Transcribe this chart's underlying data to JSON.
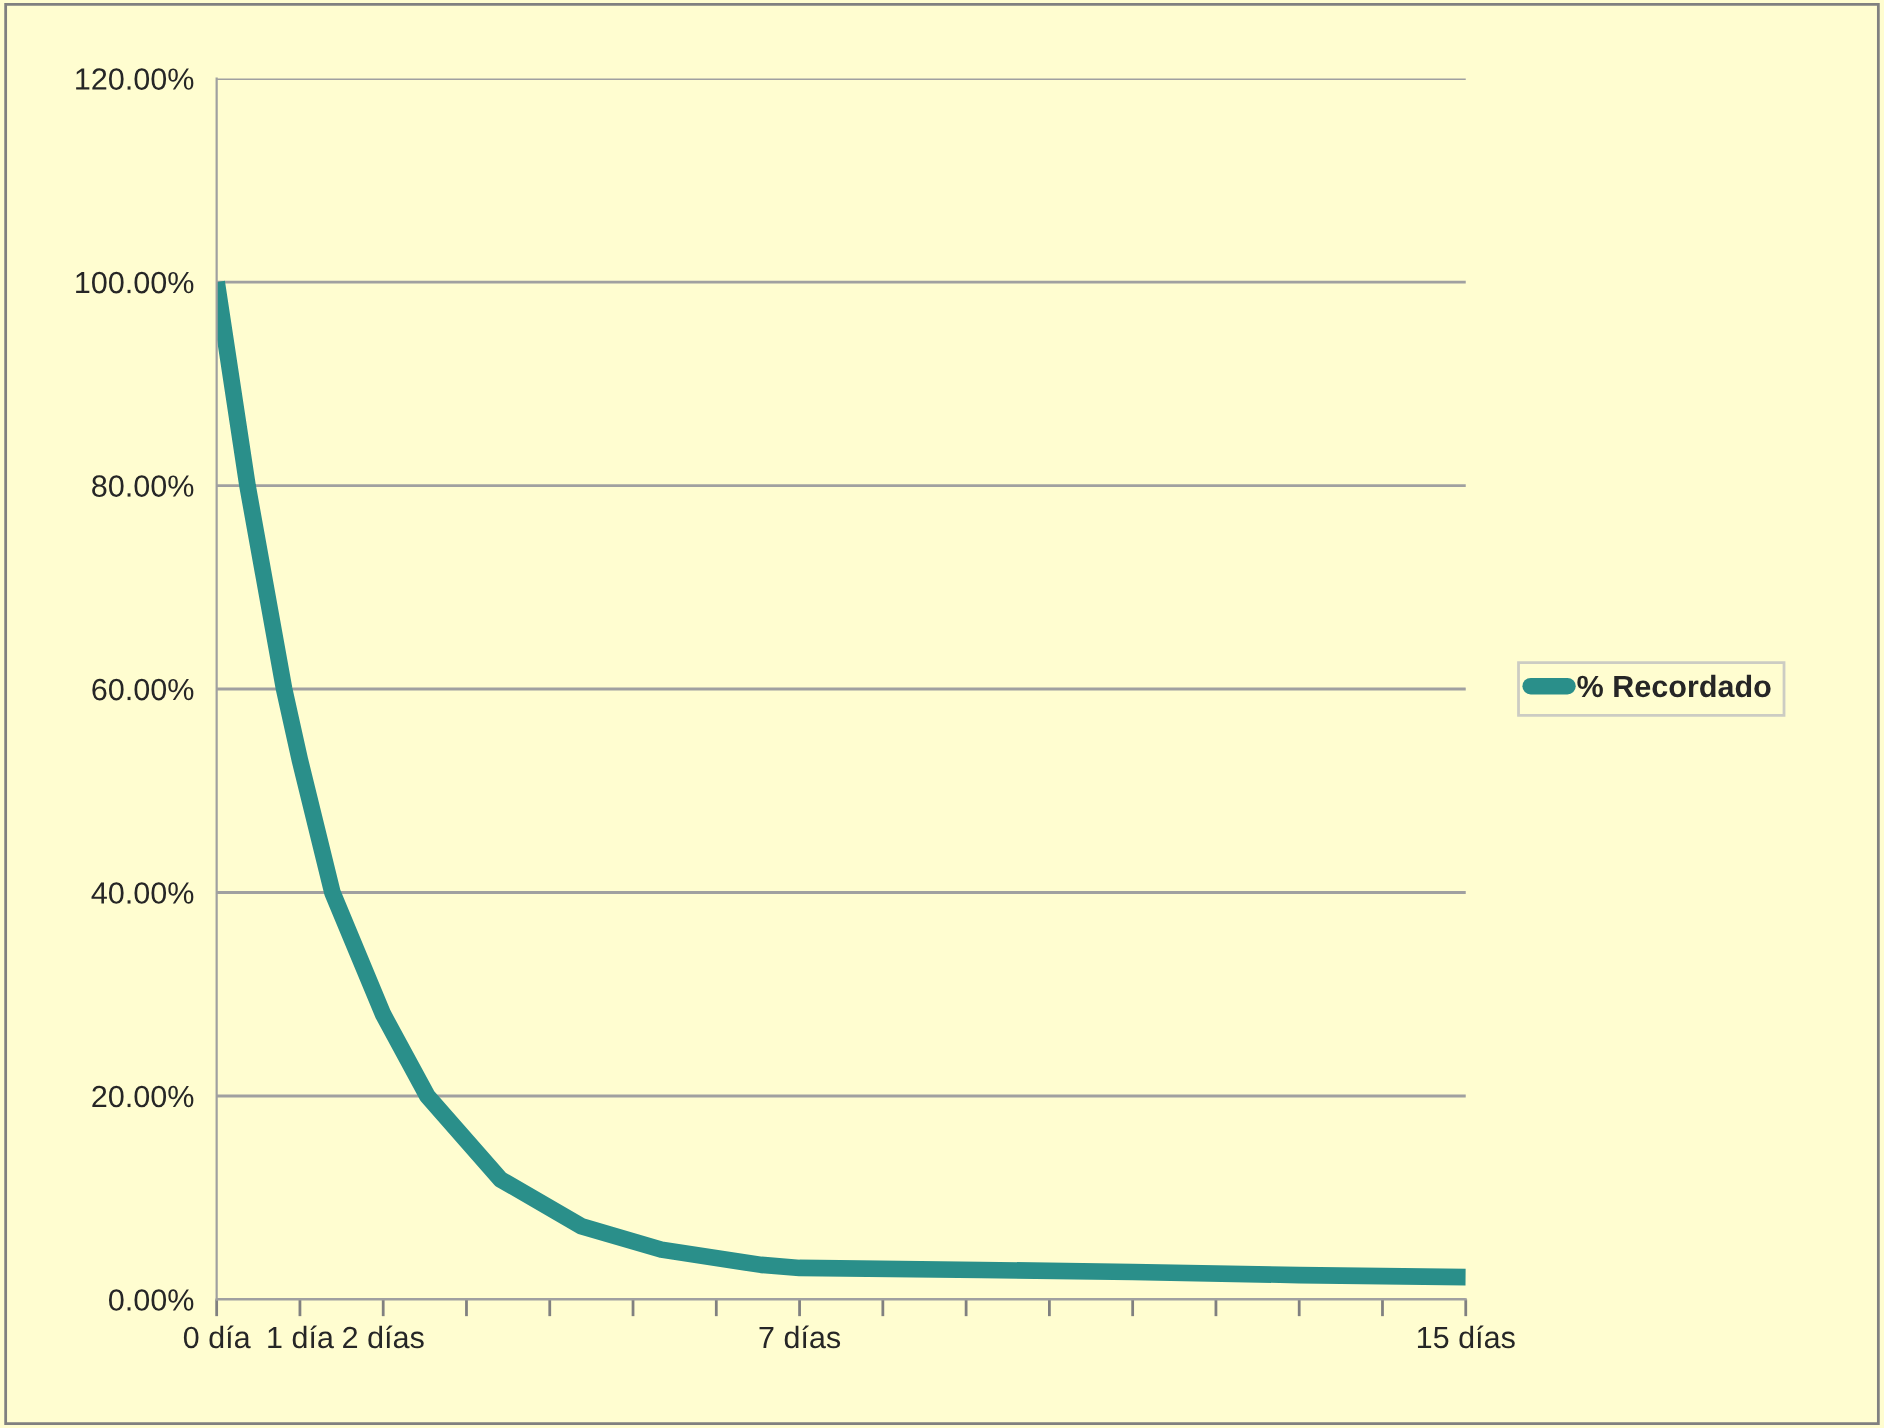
{
  "chart_data": {
    "type": "line",
    "x": [
      0,
      0.37,
      0.81,
      1.0,
      1.39,
      2.0,
      2.53,
      3.41,
      4.38,
      5.34,
      6.54,
      7,
      9.18,
      11,
      13,
      15
    ],
    "series": [
      {
        "name": "% Recordado",
        "color": "#2a8f8a",
        "values": [
          100,
          80,
          60,
          53,
          40,
          28,
          20,
          11.8,
          7.2,
          4.9,
          3.4,
          3.1,
          2.9,
          2.7,
          2.4,
          2.2
        ]
      }
    ],
    "xlim": [
      0,
      15
    ],
    "xticks": [
      {
        "value": 0,
        "label": "0 día"
      },
      {
        "value": 1,
        "label": "1 día"
      },
      {
        "value": 2,
        "label": "2 días"
      },
      {
        "value": 3,
        "label": null
      },
      {
        "value": 4,
        "label": null
      },
      {
        "value": 5,
        "label": null
      },
      {
        "value": 6,
        "label": null
      },
      {
        "value": 7,
        "label": "7 días"
      },
      {
        "value": 8,
        "label": null
      },
      {
        "value": 9,
        "label": null
      },
      {
        "value": 10,
        "label": null
      },
      {
        "value": 11,
        "label": null
      },
      {
        "value": 12,
        "label": null
      },
      {
        "value": 13,
        "label": null
      },
      {
        "value": 14,
        "label": null
      },
      {
        "value": 15,
        "label": "15 días"
      }
    ],
    "ylim": [
      0,
      120
    ],
    "yticks": [
      {
        "value": 0,
        "label": "0.00%"
      },
      {
        "value": 20,
        "label": "20.00%"
      },
      {
        "value": 40,
        "label": "40.00%"
      },
      {
        "value": 60,
        "label": "60.00%"
      },
      {
        "value": 80,
        "label": "80.00%"
      },
      {
        "value": 100,
        "label": "100.00%"
      },
      {
        "value": 120,
        "label": "120.00%"
      }
    ],
    "grid": "y",
    "legend": "right",
    "marker": "none",
    "line_style": "solid"
  }
}
